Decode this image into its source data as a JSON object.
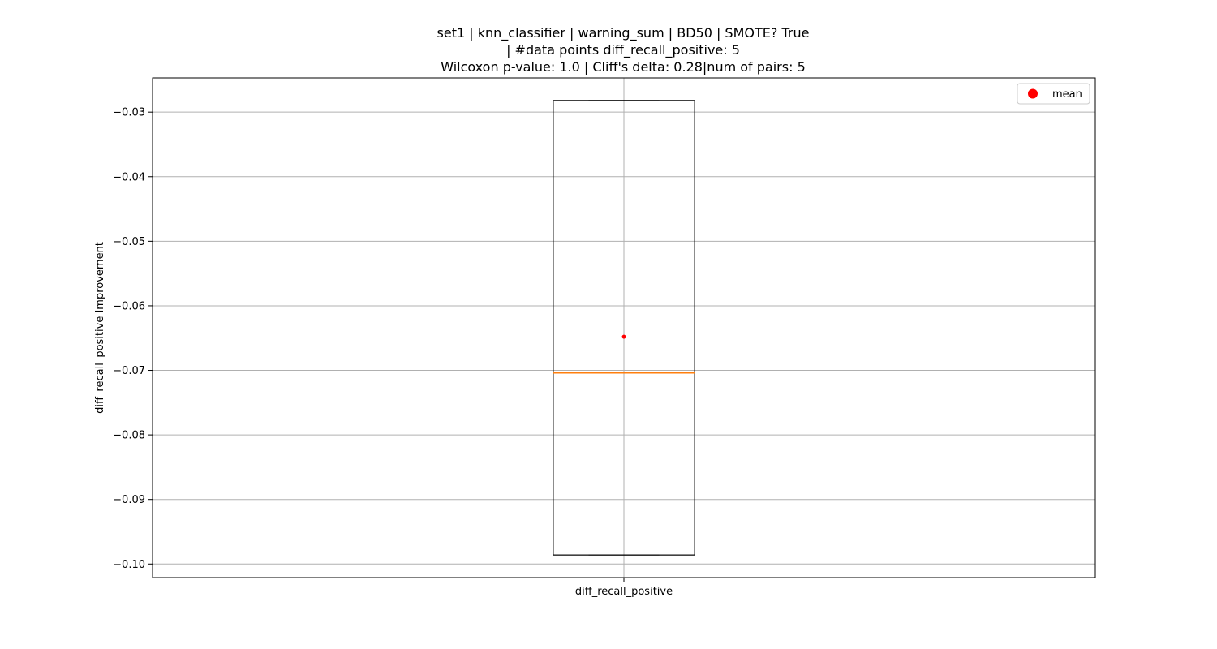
{
  "chart_data": {
    "type": "box",
    "title_lines": [
      "set1 | knn_classifier | warning_sum | BD50 | SMOTE? True",
      "| #data points diff_recall_positive: 5",
      "Wilcoxon p-value: 1.0 | Cliff's delta: 0.28|num of pairs: 5"
    ],
    "xlabel": "",
    "ylabel": "diff_recall_positive Improvement",
    "categories": [
      "diff_recall_positive"
    ],
    "ylim": [
      -0.1021,
      -0.0247
    ],
    "yticks": [
      -0.03,
      -0.04,
      -0.05,
      -0.06,
      -0.07,
      -0.08,
      -0.09,
      -0.1
    ],
    "ytick_labels": [
      "−0.03",
      "−0.04",
      "−0.05",
      "−0.06",
      "−0.07",
      "−0.08",
      "−0.09",
      "−0.10"
    ],
    "grid": true,
    "legend": {
      "position": "top-right",
      "entries": [
        {
          "label": "mean",
          "color": "#ff0000",
          "marker": "circle"
        }
      ]
    },
    "boxes": [
      {
        "category": "diff_recall_positive",
        "whisker_low": -0.0986,
        "q1": -0.0986,
        "median": -0.0704,
        "q3": -0.0282,
        "whisker_high": -0.0282,
        "mean": -0.0648
      }
    ],
    "colors": {
      "box": "#000000",
      "median": "#ff7f0e",
      "mean": "#ff0000",
      "grid": "#b0b0b0"
    }
  }
}
